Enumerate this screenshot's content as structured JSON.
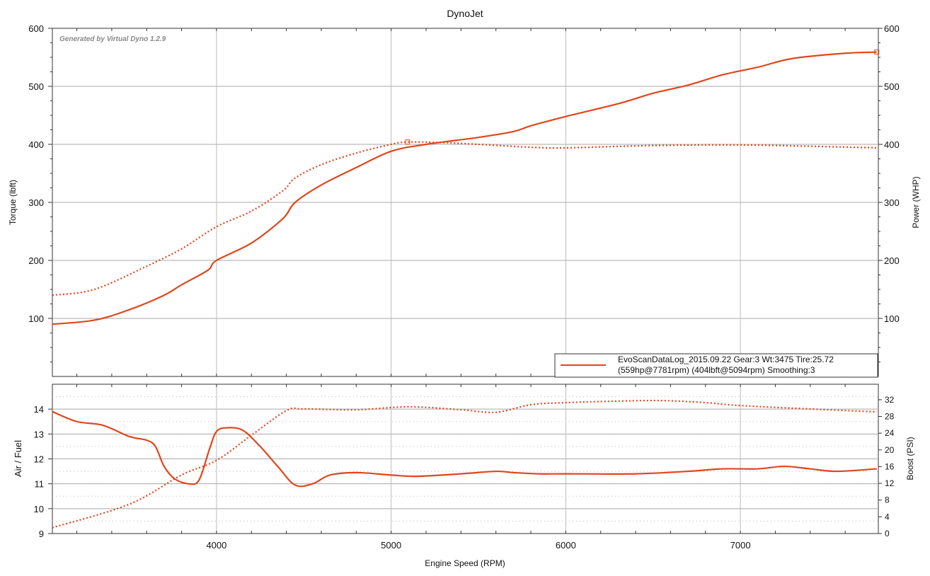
{
  "chart_data": [
    {
      "type": "line",
      "title": "DynoJet",
      "watermark": "Generated by Virtual Dyno 1.2.9",
      "xlabel": "Engine Speed (RPM)",
      "ylabel": "Torque (lbft)",
      "y2label": "Power (WHP)",
      "xlim": [
        3060,
        7790
      ],
      "ylim": [
        0,
        600
      ],
      "xticks": [
        4000,
        5000,
        6000,
        7000
      ],
      "yticks": [
        100,
        200,
        300,
        400,
        500,
        600
      ],
      "grid": true,
      "legend": {
        "placement": "bottom-right",
        "line1": "EvoScanDataLog_2015.09.22 Gear:3 Wt:3475 Tire:25.72",
        "line2": "(559hp@7781rpm) (404lbft@5094rpm) Smoothing:3"
      },
      "series": [
        {
          "name": "Power (WHP)",
          "style": "solid",
          "color": "#e0461c",
          "x": [
            3060,
            3300,
            3500,
            3700,
            3800,
            3950,
            4000,
            4200,
            4380,
            4450,
            4600,
            4800,
            5000,
            5200,
            5500,
            5700,
            5800,
            6000,
            6300,
            6500,
            6700,
            6900,
            7100,
            7300,
            7600,
            7781
          ],
          "y": [
            90,
            97,
            115,
            140,
            158,
            183,
            200,
            230,
            272,
            300,
            330,
            360,
            388,
            400,
            412,
            422,
            432,
            448,
            470,
            488,
            502,
            520,
            533,
            548,
            557,
            559
          ]
        },
        {
          "name": "Torque (lbft)",
          "style": "dotted",
          "color": "#e0461c",
          "x": [
            3060,
            3300,
            3600,
            3800,
            4000,
            4200,
            4380,
            4450,
            4600,
            4800,
            5000,
            5094,
            5300,
            5500,
            5800,
            6000,
            6500,
            7000,
            7500,
            7781
          ],
          "y": [
            140,
            150,
            190,
            220,
            258,
            285,
            320,
            342,
            365,
            385,
            400,
            404,
            403,
            400,
            395,
            394,
            398,
            399,
            396,
            394
          ]
        }
      ],
      "markers": [
        {
          "series": "Torque (lbft)",
          "x": 5094,
          "y": 404
        },
        {
          "series": "Power (WHP)",
          "x": 7781,
          "y": 559
        }
      ]
    },
    {
      "type": "line",
      "xlabel": "Engine Speed (RPM)",
      "ylabel": "Air / Fuel",
      "y2label": "Boost (PSI)",
      "xlim": [
        3060,
        7790
      ],
      "ylim": [
        9,
        15
      ],
      "y2lim": [
        0,
        35.7
      ],
      "yticks": [
        9,
        10,
        11,
        12,
        13,
        14
      ],
      "y2ticks": [
        0,
        4,
        8,
        12,
        16,
        20,
        24,
        28,
        32
      ],
      "xticks": [
        4000,
        5000,
        6000,
        7000
      ],
      "series": [
        {
          "name": "Air / Fuel",
          "axis": "left",
          "style": "solid",
          "color": "#e0461c",
          "x": [
            3060,
            3200,
            3350,
            3500,
            3600,
            3650,
            3700,
            3760,
            3840,
            3900,
            3960,
            4000,
            4060,
            4150,
            4250,
            4350,
            4450,
            4550,
            4650,
            4800,
            5000,
            5150,
            5400,
            5600,
            5700,
            5850,
            6000,
            6400,
            6700,
            6900,
            7100,
            7250,
            7400,
            7550,
            7781
          ],
          "y": [
            13.9,
            13.5,
            13.35,
            12.9,
            12.75,
            12.5,
            11.7,
            11.2,
            11.0,
            11.15,
            12.4,
            13.1,
            13.25,
            13.15,
            12.5,
            11.7,
            10.95,
            11.0,
            11.35,
            11.45,
            11.35,
            11.3,
            11.4,
            11.5,
            11.45,
            11.4,
            11.4,
            11.4,
            11.5,
            11.6,
            11.6,
            11.7,
            11.6,
            11.5,
            11.6
          ]
        },
        {
          "name": "Boost (PSI)",
          "axis": "right",
          "style": "dotted",
          "color": "#e0461c",
          "x": [
            3060,
            3500,
            3800,
            4000,
            4200,
            4400,
            4500,
            4800,
            5100,
            5400,
            5600,
            5800,
            6000,
            6500,
            6800,
            7000,
            7500,
            7781
          ],
          "y": [
            1.4,
            7,
            14,
            17.5,
            23.5,
            29.4,
            29.8,
            29.6,
            30.3,
            29.6,
            29.0,
            30.8,
            31.3,
            31.8,
            31.3,
            30.6,
            29.6,
            29.1
          ]
        }
      ]
    }
  ]
}
